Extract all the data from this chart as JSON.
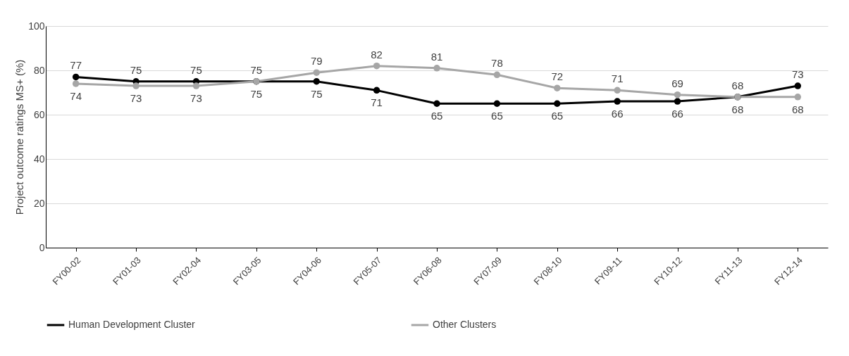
{
  "chart_data": {
    "type": "line",
    "ylabel": "Project outcome ratings MS+ (%)",
    "categories": [
      "FY00-02",
      "FY01-03",
      "FY02-04",
      "FY03-05",
      "FY04-06",
      "FY05-07",
      "FY06-08",
      "FY07-09",
      "FY08-10",
      "FY09-11",
      "FY10-12",
      "FY11-13",
      "FY12-14"
    ],
    "series": [
      {
        "name": "Human Development Cluster",
        "color": "#000000",
        "values": [
          77,
          75,
          75,
          75,
          75,
          71,
          65,
          65,
          65,
          66,
          66,
          68,
          73
        ]
      },
      {
        "name": "Other Clusters",
        "color": "#a6a6a6",
        "values": [
          74,
          73,
          73,
          75,
          79,
          82,
          81,
          78,
          72,
          71,
          69,
          68,
          68
        ]
      }
    ],
    "ylim": [
      0,
      100
    ],
    "yticks": [
      0,
      20,
      40,
      60,
      80,
      100
    ],
    "grid": "y",
    "legend": "bottom",
    "marker": "circle",
    "line_style": "solid",
    "data_labels": true
  }
}
